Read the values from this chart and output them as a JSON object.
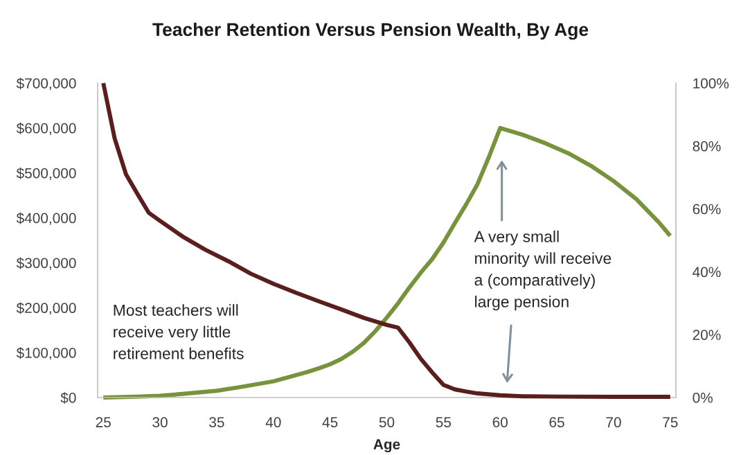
{
  "chart_data": {
    "type": "line",
    "title": "Teacher Retention Versus Pension Wealth, By Age",
    "xlabel": "Age",
    "xlim": [
      24.5,
      75.5
    ],
    "xticks": [
      25,
      30,
      35,
      40,
      45,
      50,
      55,
      60,
      65,
      70,
      75
    ],
    "ylim": [
      0,
      700000
    ],
    "yticks": [
      {
        "value": 0,
        "label": "$0"
      },
      {
        "value": 100000,
        "label": "$100,000"
      },
      {
        "value": 200000,
        "label": "$200,000"
      },
      {
        "value": 300000,
        "label": "$300,000"
      },
      {
        "value": 400000,
        "label": "$400,000"
      },
      {
        "value": 500000,
        "label": "$500,000"
      },
      {
        "value": 600000,
        "label": "$600,000"
      },
      {
        "value": 700000,
        "label": "$700,000"
      }
    ],
    "y2lim": [
      0,
      100
    ],
    "y2ticks": [
      {
        "value": 0,
        "label": "0%"
      },
      {
        "value": 20,
        "label": "20%"
      },
      {
        "value": 40,
        "label": "40%"
      },
      {
        "value": 60,
        "label": "60%"
      },
      {
        "value": 80,
        "label": "80%"
      },
      {
        "value": 100,
        "label": "100%"
      }
    ],
    "series": [
      {
        "color": "#77933c",
        "x": [
          25,
          28,
          30,
          32,
          35,
          37,
          40,
          42,
          43,
          44,
          45,
          46,
          47,
          48,
          49,
          50,
          51,
          52,
          53,
          54,
          55,
          56,
          57,
          58,
          59,
          60,
          62,
          64,
          66,
          68,
          70,
          72,
          74,
          75
        ],
        "values": [
          0,
          2000,
          4000,
          8000,
          15000,
          23000,
          36000,
          50000,
          57000,
          65000,
          74000,
          86000,
          102000,
          122000,
          148000,
          178000,
          210000,
          245000,
          278000,
          308000,
          345000,
          388000,
          430000,
          475000,
          535000,
          600000,
          585000,
          566000,
          544000,
          516000,
          482000,
          442000,
          390000,
          360000
        ]
      },
      {
        "color": "#5a1e1e",
        "axis": "y2",
        "x": [
          25,
          26,
          27,
          28,
          29,
          30,
          32,
          34,
          36,
          38,
          40,
          42,
          44,
          46,
          48,
          50,
          51,
          52,
          53,
          54,
          55,
          56,
          57,
          58,
          60,
          62,
          65,
          70,
          75
        ],
        "values": [
          100,
          82.4,
          71.0,
          64.8,
          58.8,
          56.2,
          51.2,
          47.0,
          43.4,
          39.4,
          36.2,
          33.3,
          30.6,
          28.0,
          25.3,
          23.1,
          22.2,
          17.5,
          12.3,
          8.0,
          4.0,
          2.6,
          1.9,
          1.3,
          0.7,
          0.4,
          0.3,
          0.2,
          0.2
        ]
      }
    ],
    "annotations": [
      "Most teachers will\nreceive very little\nretirement benefits",
      "A very small\nminority will receive\na (comparatively)\nlarge pension"
    ]
  }
}
